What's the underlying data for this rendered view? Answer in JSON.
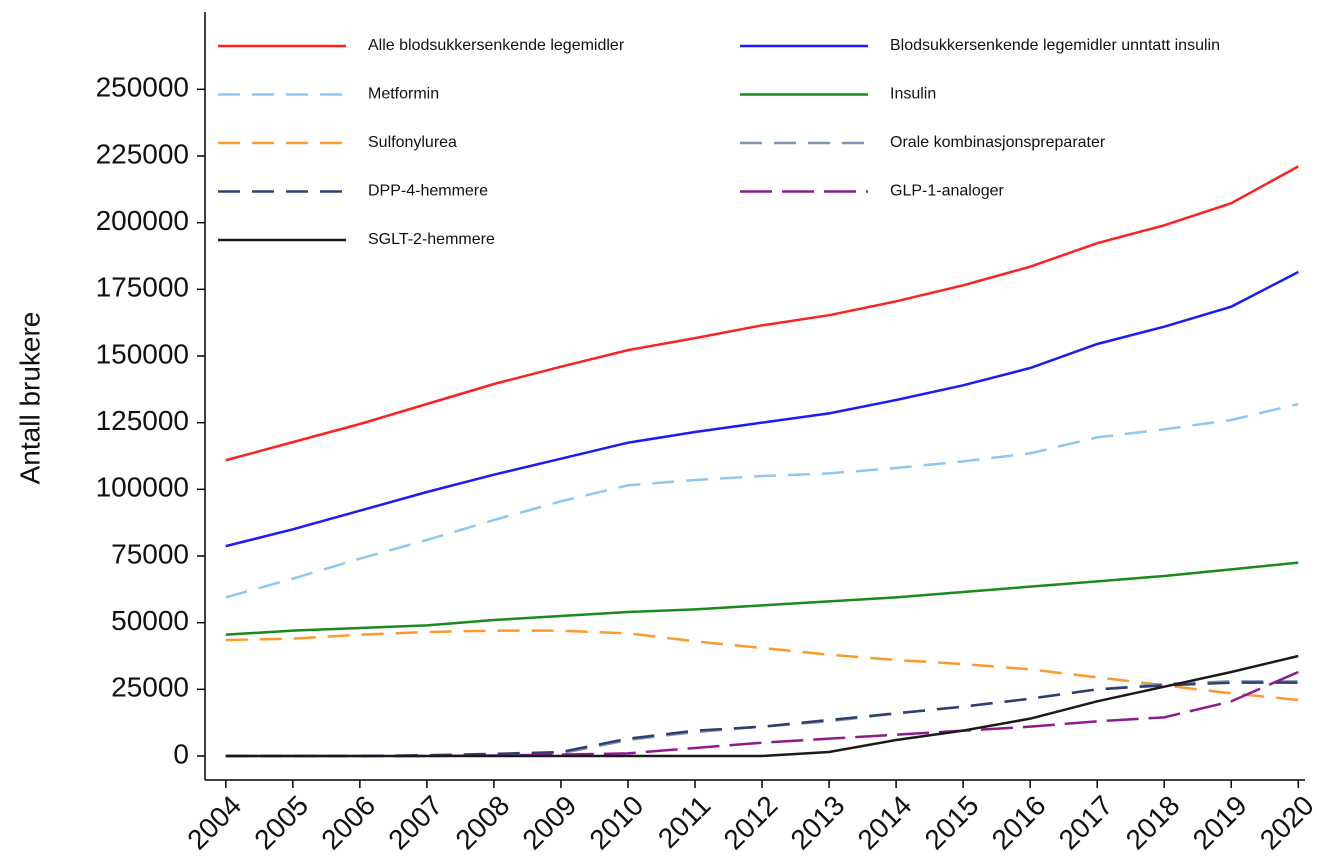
{
  "chart_data": {
    "type": "line",
    "y_label": "Antall brukere",
    "x": [
      2004,
      2005,
      2006,
      2007,
      2008,
      2009,
      2010,
      2011,
      2012,
      2013,
      2014,
      2015,
      2016,
      2017,
      2018,
      2019,
      2020
    ],
    "xlim": [
      2003.69,
      2020.1
    ],
    "xticks": [
      2004,
      2005,
      2006,
      2007,
      2008,
      2009,
      2010,
      2011,
      2012,
      2013,
      2014,
      2015,
      2016,
      2017,
      2018,
      2019,
      2020
    ],
    "ylim": [
      -9000,
      279000
    ],
    "yticks": [
      0,
      25000,
      50000,
      75000,
      100000,
      125000,
      150000,
      175000,
      200000,
      225000,
      250000
    ],
    "grid": false,
    "legend": "top",
    "series": [
      {
        "name": "Alle blodsukkersenkende legemidler",
        "color": "#ff2020",
        "line_style": "solid",
        "values": [
          110900,
          117700,
          124500,
          132000,
          139500,
          146000,
          152200,
          156700,
          161500,
          165300,
          170500,
          176500,
          183500,
          192300,
          199000,
          207300,
          221100
        ]
      },
      {
        "name": "Blodsukkersenkende legemidler unntatt insulin",
        "color": "#1a1aff",
        "line_style": "solid",
        "values": [
          78700,
          85000,
          92000,
          99000,
          105500,
          111500,
          117500,
          121500,
          125000,
          128500,
          133500,
          139000,
          145500,
          154500,
          161000,
          168500,
          181500
        ]
      },
      {
        "name": "Metformin",
        "color": "#8ec8f0",
        "line_style": "dash",
        "values": [
          59500,
          66500,
          74000,
          81000,
          88500,
          95500,
          101500,
          103500,
          105000,
          106000,
          108000,
          110500,
          113500,
          119500,
          122500,
          126000,
          132000
        ]
      },
      {
        "name": "Insulin",
        "color": "#1a8a1a",
        "line_style": "solid",
        "values": [
          45500,
          47000,
          48000,
          49000,
          51000,
          52500,
          54000,
          55000,
          56500,
          58000,
          59500,
          61500,
          63500,
          65500,
          67500,
          70000,
          72500
        ]
      },
      {
        "name": "Sulfonylurea",
        "color": "#ff9a2a",
        "line_style": "dash",
        "values": [
          43500,
          44000,
          45500,
          46500,
          47000,
          47000,
          46000,
          43000,
          40500,
          38000,
          36000,
          34500,
          32500,
          29500,
          26500,
          23500,
          21000
        ]
      },
      {
        "name": "Orale kombinasjonspreparater",
        "color": "#7f93b5",
        "line_style": "dash",
        "values": [
          0,
          0,
          0,
          0,
          500,
          1000,
          6000,
          9000,
          11000,
          13000,
          16000,
          18500,
          21500,
          25000,
          27000,
          28000,
          28000
        ]
      },
      {
        "name": "DPP-4-hemmere",
        "color": "#2e3f6e",
        "line_style": "dash",
        "values": [
          0,
          0,
          0,
          300,
          800,
          1500,
          6500,
          9500,
          11000,
          13500,
          16000,
          18500,
          21500,
          25000,
          26500,
          27500,
          27500
        ]
      },
      {
        "name": "GLP-1-analoger",
        "color": "#8e1a8e",
        "line_style": "longdash",
        "values": [
          0,
          0,
          0,
          0,
          200,
          500,
          1000,
          3000,
          5000,
          6500,
          8000,
          9500,
          11000,
          13000,
          14500,
          20500,
          31500
        ]
      },
      {
        "name": "SGLT-2-hemmere",
        "color": "#1a1a1a",
        "line_style": "solid",
        "values": [
          0,
          0,
          0,
          0,
          0,
          0,
          0,
          0,
          0,
          1500,
          6000,
          9500,
          14000,
          20500,
          26000,
          31500,
          37500
        ]
      }
    ]
  }
}
